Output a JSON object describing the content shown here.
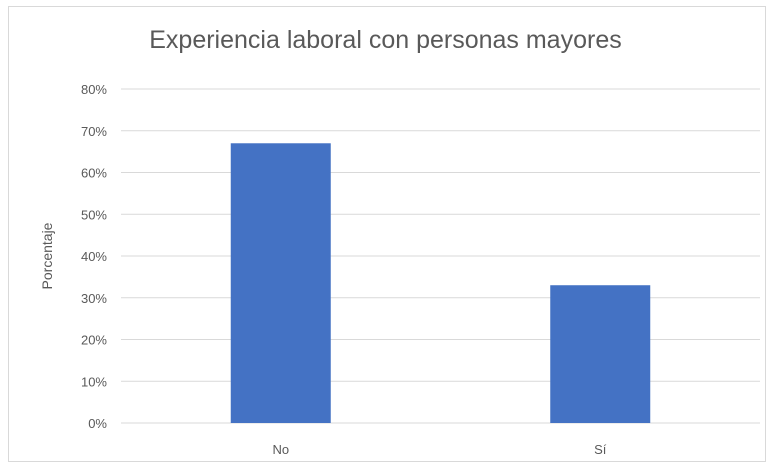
{
  "chart_data": {
    "type": "bar",
    "title": "Experiencia laboral con personas mayores",
    "xlabel": "",
    "ylabel": "Porcentaje",
    "categories": [
      "No",
      "Sí"
    ],
    "values": [
      0.67,
      0.33
    ],
    "ylim": [
      0,
      0.8
    ],
    "yticks": [
      "0%",
      "10%",
      "20%",
      "30%",
      "40%",
      "50%",
      "60%",
      "70%",
      "80%"
    ],
    "grid": true,
    "legend": "none",
    "bar_color": "#4472c4"
  }
}
